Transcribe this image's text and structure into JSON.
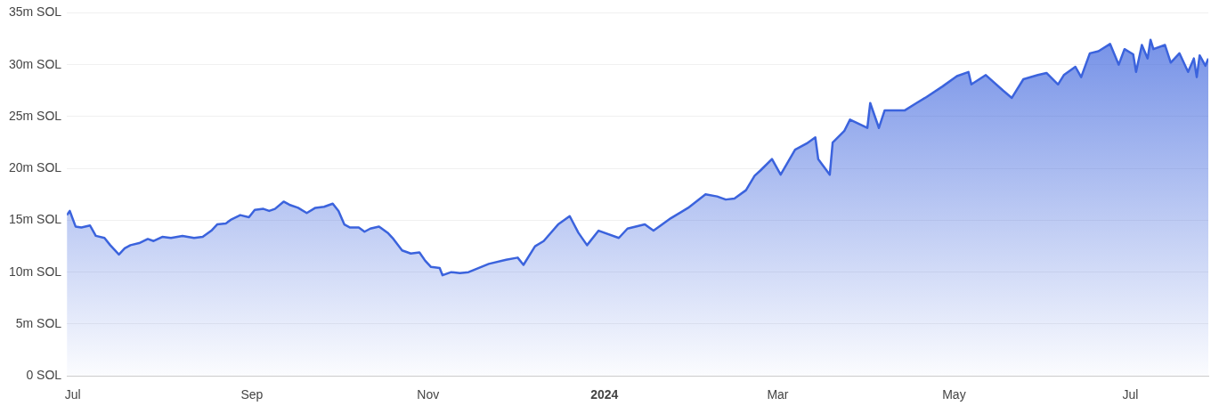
{
  "chart_data": {
    "type": "area",
    "x": [
      "2023-06-29",
      "2023-06-30",
      "2023-07-02",
      "2023-07-04",
      "2023-07-07",
      "2023-07-09",
      "2023-07-12",
      "2023-07-14",
      "2023-07-17",
      "2023-07-19",
      "2023-07-21",
      "2023-07-24",
      "2023-07-27",
      "2023-07-29",
      "2023-08-01",
      "2023-08-04",
      "2023-08-08",
      "2023-08-12",
      "2023-08-15",
      "2023-08-18",
      "2023-08-20",
      "2023-08-23",
      "2023-08-25",
      "2023-08-28",
      "2023-08-31",
      "2023-09-02",
      "2023-09-05",
      "2023-09-07",
      "2023-09-09",
      "2023-09-12",
      "2023-09-14",
      "2023-09-17",
      "2023-09-20",
      "2023-09-23",
      "2023-09-26",
      "2023-09-29",
      "2023-10-01",
      "2023-10-03",
      "2023-10-05",
      "2023-10-08",
      "2023-10-10",
      "2023-10-12",
      "2023-10-15",
      "2023-10-18",
      "2023-10-20",
      "2023-10-23",
      "2023-10-26",
      "2023-10-29",
      "2023-10-31",
      "2023-11-02",
      "2023-11-05",
      "2023-11-06",
      "2023-11-09",
      "2023-11-12",
      "2023-11-15",
      "2023-11-22",
      "2023-11-28",
      "2023-12-02",
      "2023-12-04",
      "2023-12-08",
      "2023-12-11",
      "2023-12-16",
      "2023-12-20",
      "2023-12-23",
      "2023-12-26",
      "2023-12-30",
      "2024-01-06",
      "2024-01-09",
      "2024-01-15",
      "2024-01-18",
      "2024-01-24",
      "2024-01-30",
      "2024-02-05",
      "2024-02-09",
      "2024-02-12",
      "2024-02-15",
      "2024-02-19",
      "2024-02-22",
      "2024-02-24",
      "2024-02-28",
      "2024-03-02",
      "2024-03-07",
      "2024-03-11",
      "2024-03-14",
      "2024-03-15",
      "2024-03-19",
      "2024-03-20",
      "2024-03-24",
      "2024-03-26",
      "2024-04-01",
      "2024-04-02",
      "2024-04-05",
      "2024-04-07",
      "2024-04-14",
      "2024-04-18",
      "2024-04-21",
      "2024-04-27",
      "2024-05-02",
      "2024-05-06",
      "2024-05-07",
      "2024-05-12",
      "2024-05-18",
      "2024-05-21",
      "2024-05-25",
      "2024-05-30",
      "2024-06-02",
      "2024-06-06",
      "2024-06-08",
      "2024-06-12",
      "2024-06-14",
      "2024-06-17",
      "2024-06-20",
      "2024-06-24",
      "2024-06-27",
      "2024-06-29",
      "2024-07-02",
      "2024-07-03",
      "2024-07-05",
      "2024-07-07",
      "2024-07-08",
      "2024-07-09",
      "2024-07-13",
      "2024-07-15",
      "2024-07-18",
      "2024-07-21",
      "2024-07-23",
      "2024-07-24",
      "2024-07-25",
      "2024-07-27",
      "2024-07-28"
    ],
    "series": [
      {
        "color": "#3b63dd",
        "values": [
          15.5,
          15.9,
          14.4,
          14.3,
          14.5,
          13.5,
          13.3,
          12.6,
          11.7,
          12.3,
          12.6,
          12.8,
          13.2,
          13.0,
          13.4,
          13.3,
          13.5,
          13.3,
          13.4,
          14.0,
          14.6,
          14.7,
          15.1,
          15.5,
          15.3,
          16.0,
          16.1,
          15.9,
          16.1,
          16.8,
          16.5,
          16.2,
          15.7,
          16.2,
          16.3,
          16.6,
          15.9,
          14.6,
          14.3,
          14.3,
          13.9,
          14.2,
          14.4,
          13.8,
          13.2,
          12.1,
          11.8,
          11.9,
          11.1,
          10.5,
          10.4,
          9.7,
          10.0,
          9.9,
          10.0,
          10.8,
          11.2,
          11.4,
          10.7,
          12.5,
          13.0,
          14.6,
          15.4,
          13.8,
          12.6,
          14.0,
          13.3,
          14.2,
          14.6,
          14.0,
          15.2,
          16.2,
          17.5,
          17.3,
          17.0,
          17.1,
          17.9,
          19.3,
          19.8,
          20.9,
          19.4,
          21.8,
          22.4,
          23.0,
          20.9,
          19.4,
          22.5,
          23.6,
          24.7,
          23.9,
          26.3,
          23.9,
          25.6,
          25.6,
          26.3,
          26.8,
          27.9,
          28.9,
          29.3,
          28.1,
          29.0,
          27.5,
          26.8,
          28.6,
          29.0,
          29.2,
          28.1,
          29.0,
          29.8,
          28.8,
          31.1,
          31.3,
          32.0,
          30.0,
          31.5,
          31.0,
          29.3,
          31.9,
          30.6,
          32.4,
          31.5,
          31.9,
          30.2,
          31.1,
          29.3,
          30.6,
          28.8,
          30.9,
          29.9,
          30.6
        ]
      }
    ],
    "xlim": [
      "2023-06-29",
      "2024-07-28"
    ],
    "xticks": [
      {
        "value": "2023-07-01",
        "label": "Jul"
      },
      {
        "value": "2023-09-01",
        "label": "Sep"
      },
      {
        "value": "2023-11-01",
        "label": "Nov"
      },
      {
        "value": "2024-01-01",
        "label": "2024"
      },
      {
        "value": "2024-03-01",
        "label": "Mar"
      },
      {
        "value": "2024-05-01",
        "label": "May"
      },
      {
        "value": "2024-07-01",
        "label": "Jul"
      }
    ],
    "ylim": [
      0,
      35
    ],
    "yticks": [
      {
        "value": 0,
        "label": "0 SOL"
      },
      {
        "value": 5,
        "label": "5m SOL"
      },
      {
        "value": 10,
        "label": "10m SOL"
      },
      {
        "value": 15,
        "label": "15m SOL"
      },
      {
        "value": 20,
        "label": "20m SOL"
      },
      {
        "value": 25,
        "label": "25m SOL"
      },
      {
        "value": 30,
        "label": "30m SOL"
      },
      {
        "value": 35,
        "label": "35m SOL"
      }
    ],
    "grid": "y",
    "legend": false
  }
}
